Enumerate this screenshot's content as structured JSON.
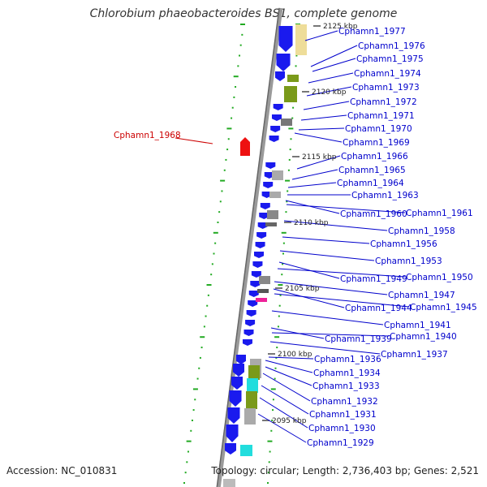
{
  "title": "Chlorobium phaeobacteroides BS1, complete genome",
  "accession": "Accession: NC_010831",
  "topology": "Topology: circular; Length: 2,736,403 bp; Genes: 2,521",
  "colors": {
    "gene_label": "#0000cc",
    "highlight_label": "#cc0000",
    "cds_arrow": "#1a1aee",
    "highlight_gene": "#ee1111",
    "marker": "#22aa22",
    "backbone": "#888888",
    "cyan": "#22dddd",
    "magenta": "#ee2299",
    "olive": "#7a9a1a",
    "khaki": "#eedd99",
    "gray_box": "#aaaaaa"
  },
  "scale_labels": [
    "2125 kbp",
    "2120 kbp",
    "2115 kbp",
    "2110 kbp",
    "2105 kbp",
    "2100 kbp",
    "2095 kbp"
  ],
  "highlight_label": "Cphamn1_1968",
  "gene_labels": [
    "Cphamn1_1977",
    "Cphamn1_1976",
    "Cphamn1_1975",
    "Cphamn1_1974",
    "Cphamn1_1973",
    "Cphamn1_1972",
    "Cphamn1_1971",
    "Cphamn1_1970",
    "Cphamn1_1969",
    "Cphamn1_1966",
    "Cphamn1_1965",
    "Cphamn1_1964",
    "Cphamn1_1963",
    "Cphamn1_1960",
    "Cphamn1_1961",
    "Cphamn1_1958",
    "Cphamn1_1956",
    "Cphamn1_1953",
    "Cphamn1_1949",
    "Cphamn1_1950",
    "Cphamn1_1947",
    "Cphamn1_1944",
    "Cphamn1_1945",
    "Cphamn1_1941",
    "Cphamn1_1939",
    "Cphamn1_1940",
    "Cphamn1_1937",
    "Cphamn1_1936",
    "Cphamn1_1934",
    "Cphamn1_1933",
    "Cphamn1_1932",
    "Cphamn1_1931",
    "Cphamn1_1930",
    "Cphamn1_1929"
  ]
}
